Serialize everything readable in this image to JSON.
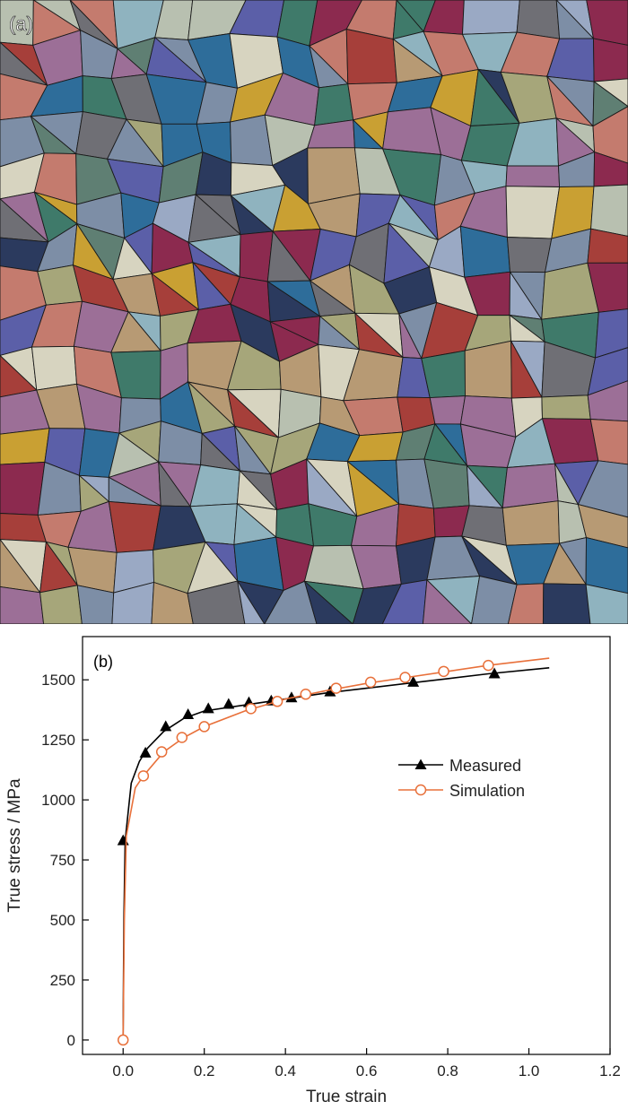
{
  "panel_a": {
    "label": "(a)",
    "palette": [
      "#2b3a5e",
      "#8c2a4f",
      "#c9a033",
      "#3f7a6a",
      "#5b5fa8",
      "#c47b6e",
      "#9aa9c4",
      "#b79a74",
      "#6f6f75",
      "#8fb3bf",
      "#d7d4c0",
      "#9c6f97",
      "#a6a67a",
      "#2e6d9a",
      "#a63f3a",
      "#b8c0b0",
      "#7d8ea6",
      "#5f7f73"
    ]
  },
  "chart_data": {
    "type": "line",
    "panel_label": "(b)",
    "xlabel": "True strain",
    "ylabel": "True stress / MPa",
    "xlim": [
      -0.1,
      1.2
    ],
    "ylim": [
      -60,
      1680
    ],
    "x_ticks": [
      "0.0",
      "0.2",
      "0.4",
      "0.6",
      "0.8",
      "1.0",
      "1.2"
    ],
    "y_ticks": [
      "0",
      "250",
      "500",
      "750",
      "1000",
      "1250",
      "1500"
    ],
    "legend_position": "center-right",
    "series": [
      {
        "name": "Measured",
        "color": "#000000",
        "marker": "triangle-filled",
        "curve": [
          [
            0.0,
            0
          ],
          [
            0.002,
            500
          ],
          [
            0.005,
            830
          ],
          [
            0.02,
            1070
          ],
          [
            0.04,
            1160
          ],
          [
            0.06,
            1215
          ],
          [
            0.1,
            1285
          ],
          [
            0.15,
            1340
          ],
          [
            0.2,
            1370
          ],
          [
            0.3,
            1395
          ],
          [
            0.4,
            1420
          ],
          [
            0.5,
            1445
          ],
          [
            0.6,
            1465
          ],
          [
            0.7,
            1485
          ],
          [
            0.8,
            1505
          ],
          [
            0.9,
            1525
          ],
          [
            1.05,
            1550
          ]
        ],
        "markers": [
          [
            0.0,
            830
          ],
          [
            0.055,
            1195
          ],
          [
            0.105,
            1305
          ],
          [
            0.16,
            1355
          ],
          [
            0.21,
            1380
          ],
          [
            0.26,
            1398
          ],
          [
            0.31,
            1405
          ],
          [
            0.365,
            1412
          ],
          [
            0.415,
            1425
          ],
          [
            0.51,
            1450
          ],
          [
            0.715,
            1490
          ],
          [
            0.915,
            1525
          ]
        ]
      },
      {
        "name": "Simulation",
        "color": "#e8703a",
        "marker": "circle-open",
        "curve": [
          [
            0.0,
            0
          ],
          [
            0.003,
            500
          ],
          [
            0.008,
            850
          ],
          [
            0.03,
            1050
          ],
          [
            0.05,
            1100
          ],
          [
            0.1,
            1200
          ],
          [
            0.15,
            1260
          ],
          [
            0.2,
            1305
          ],
          [
            0.3,
            1370
          ],
          [
            0.4,
            1420
          ],
          [
            0.5,
            1455
          ],
          [
            0.6,
            1485
          ],
          [
            0.7,
            1510
          ],
          [
            0.8,
            1535
          ],
          [
            0.9,
            1560
          ],
          [
            1.05,
            1590
          ]
        ],
        "markers": [
          [
            0.0,
            0
          ],
          [
            0.05,
            1100
          ],
          [
            0.095,
            1200
          ],
          [
            0.145,
            1260
          ],
          [
            0.2,
            1305
          ],
          [
            0.315,
            1380
          ],
          [
            0.38,
            1410
          ],
          [
            0.45,
            1440
          ],
          [
            0.525,
            1465
          ],
          [
            0.61,
            1490
          ],
          [
            0.695,
            1510
          ],
          [
            0.79,
            1535
          ],
          [
            0.9,
            1560
          ]
        ]
      }
    ]
  }
}
